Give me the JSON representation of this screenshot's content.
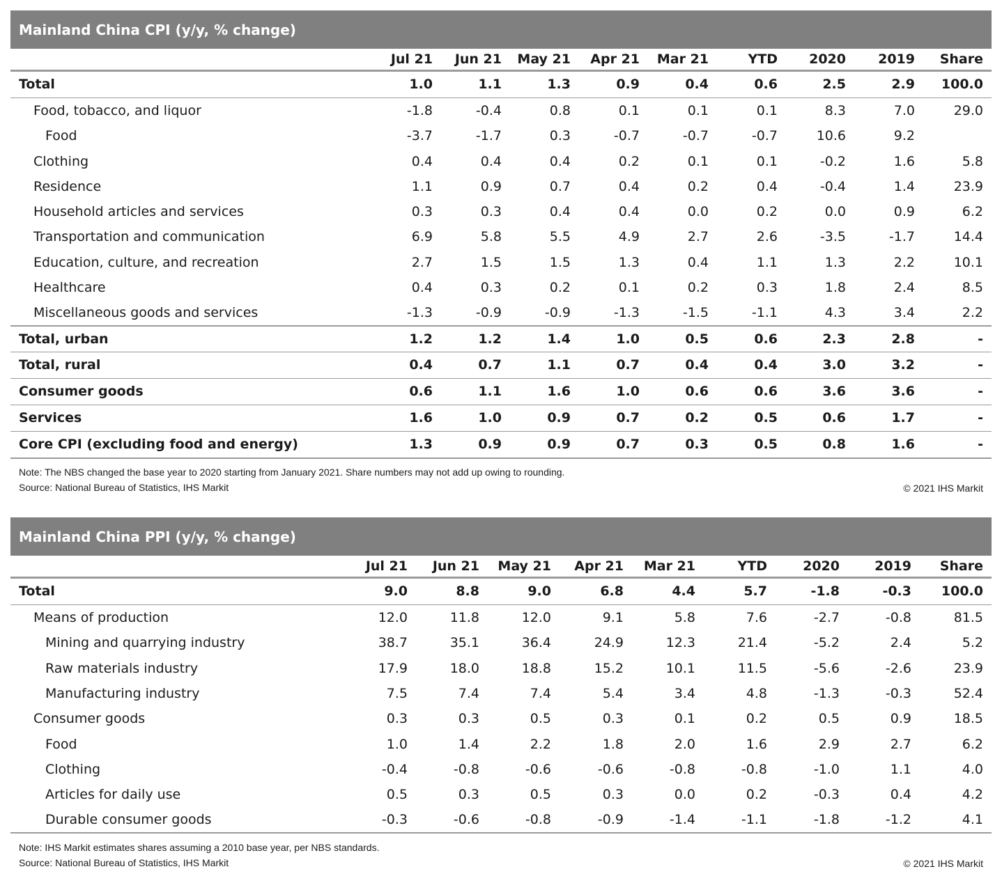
{
  "cpi": {
    "title": "Mainland China CPI (y/y, % change)",
    "columns": [
      "Jul 21",
      "Jun 21",
      "May 21",
      "Apr 21",
      "Mar 21",
      "YTD",
      "2020",
      "2019",
      "Share"
    ],
    "rows": [
      {
        "label": "Total",
        "values": [
          "1.0",
          "1.1",
          "1.3",
          "0.9",
          "0.4",
          "0.6",
          "2.5",
          "2.9",
          "100.0"
        ]
      },
      {
        "label": "Food, tobacco, and liquor",
        "values": [
          "-1.8",
          "-0.4",
          "0.8",
          "0.1",
          "0.1",
          "0.1",
          "8.3",
          "7.0",
          "29.0"
        ]
      },
      {
        "label": "Food",
        "values": [
          "-3.7",
          "-1.7",
          "0.3",
          "-0.7",
          "-0.7",
          "-0.7",
          "10.6",
          "9.2",
          ""
        ]
      },
      {
        "label": "Clothing",
        "values": [
          "0.4",
          "0.4",
          "0.4",
          "0.2",
          "0.1",
          "0.1",
          "-0.2",
          "1.6",
          "5.8"
        ]
      },
      {
        "label": "Residence",
        "values": [
          "1.1",
          "0.9",
          "0.7",
          "0.4",
          "0.2",
          "0.4",
          "-0.4",
          "1.4",
          "23.9"
        ]
      },
      {
        "label": "Household articles and services",
        "values": [
          "0.3",
          "0.3",
          "0.4",
          "0.4",
          "0.0",
          "0.2",
          "0.0",
          "0.9",
          "6.2"
        ]
      },
      {
        "label": "Transportation and communication",
        "values": [
          "6.9",
          "5.8",
          "5.5",
          "4.9",
          "2.7",
          "2.6",
          "-3.5",
          "-1.7",
          "14.4"
        ]
      },
      {
        "label": "Education, culture, and recreation",
        "values": [
          "2.7",
          "1.5",
          "1.5",
          "1.3",
          "0.4",
          "1.1",
          "1.3",
          "2.2",
          "10.1"
        ]
      },
      {
        "label": "Healthcare",
        "values": [
          "0.4",
          "0.3",
          "0.2",
          "0.1",
          "0.2",
          "0.3",
          "1.8",
          "2.4",
          "8.5"
        ]
      },
      {
        "label": "Miscellaneous goods and services",
        "values": [
          "-1.3",
          "-0.9",
          "-0.9",
          "-1.3",
          "-1.5",
          "-1.1",
          "4.3",
          "3.4",
          "2.2"
        ]
      },
      {
        "label": "Total, urban",
        "values": [
          "1.2",
          "1.2",
          "1.4",
          "1.0",
          "0.5",
          "0.6",
          "2.3",
          "2.8",
          "-"
        ]
      },
      {
        "label": "Total, rural",
        "values": [
          "0.4",
          "0.7",
          "1.1",
          "0.7",
          "0.4",
          "0.4",
          "3.0",
          "3.2",
          "-"
        ]
      },
      {
        "label": "Consumer goods",
        "values": [
          "0.6",
          "1.1",
          "1.6",
          "1.0",
          "0.6",
          "0.6",
          "3.6",
          "3.6",
          "-"
        ]
      },
      {
        "label": "Services",
        "values": [
          "1.6",
          "1.0",
          "0.9",
          "0.7",
          "0.2",
          "0.5",
          "0.6",
          "1.7",
          "-"
        ]
      },
      {
        "label": "Core CPI (excluding food and energy)",
        "values": [
          "1.3",
          "0.9",
          "0.9",
          "0.7",
          "0.3",
          "0.5",
          "0.8",
          "1.6",
          "-"
        ]
      }
    ],
    "note": "Note: The NBS changed the base year to 2020 starting from January 2021. Share numbers may not add up owing to rounding.",
    "source": "Source: National Bureau of Statistics, IHS Markit",
    "copyright": "© 2021 IHS Markit"
  },
  "ppi": {
    "title": "Mainland China PPI (y/y, % change)",
    "columns": [
      "Jul 21",
      "Jun 21",
      "May 21",
      "Apr 21",
      "Mar 21",
      "YTD",
      "2020",
      "2019",
      "Share"
    ],
    "rows": [
      {
        "label": "Total",
        "values": [
          "9.0",
          "8.8",
          "9.0",
          "6.8",
          "4.4",
          "5.7",
          "-1.8",
          "-0.3",
          "100.0"
        ]
      },
      {
        "label": "Means of production",
        "values": [
          "12.0",
          "11.8",
          "12.0",
          "9.1",
          "5.8",
          "7.6",
          "-2.7",
          "-0.8",
          "81.5"
        ]
      },
      {
        "label": "Mining and quarrying industry",
        "values": [
          "38.7",
          "35.1",
          "36.4",
          "24.9",
          "12.3",
          "21.4",
          "-5.2",
          "2.4",
          "5.2"
        ]
      },
      {
        "label": "Raw materials industry",
        "values": [
          "17.9",
          "18.0",
          "18.8",
          "15.2",
          "10.1",
          "11.5",
          "-5.6",
          "-2.6",
          "23.9"
        ]
      },
      {
        "label": "Manufacturing industry",
        "values": [
          "7.5",
          "7.4",
          "7.4",
          "5.4",
          "3.4",
          "4.8",
          "-1.3",
          "-0.3",
          "52.4"
        ]
      },
      {
        "label": "Consumer goods",
        "values": [
          "0.3",
          "0.3",
          "0.5",
          "0.3",
          "0.1",
          "0.2",
          "0.5",
          "0.9",
          "18.5"
        ]
      },
      {
        "label": "Food",
        "values": [
          "1.0",
          "1.4",
          "2.2",
          "1.8",
          "2.0",
          "1.6",
          "2.9",
          "2.7",
          "6.2"
        ]
      },
      {
        "label": "Clothing",
        "values": [
          "-0.4",
          "-0.8",
          "-0.6",
          "-0.6",
          "-0.8",
          "-0.8",
          "-1.0",
          "1.1",
          "4.0"
        ]
      },
      {
        "label": "Articles for daily use",
        "values": [
          "0.5",
          "0.3",
          "0.5",
          "0.3",
          "0.0",
          "0.2",
          "-0.3",
          "0.4",
          "4.2"
        ]
      },
      {
        "label": "Durable consumer goods",
        "values": [
          "-0.3",
          "-0.6",
          "-0.8",
          "-0.9",
          "-1.4",
          "-1.1",
          "-1.8",
          "-1.2",
          "4.1"
        ]
      }
    ],
    "note": "Note: IHS Markit estimates shares assuming a 2010 base year, per NBS standards.",
    "source": "Source: National Bureau of Statistics, IHS Markit",
    "copyright": "© 2021 IHS Markit"
  }
}
